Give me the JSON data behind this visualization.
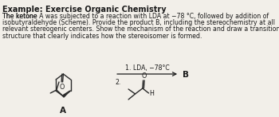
{
  "title": "Example: Exercise Organic Chemistry",
  "body_line1": "The ketone A was subjected to a reaction with LDA at −78 °C, followed by addition of",
  "body_line2": "isobutyraldehyde (Scheme). Provide the product B, including the stereochemistry at all",
  "body_line3": "relevant stereogenic centers. Show the mechanism of the reaction and draw a transition",
  "body_line4": "structure that clearly indicates how the stereoisomer is formed.",
  "bold_words_line1": [
    "A",
    "LDA"
  ],
  "label_A": "A",
  "label_B": "B",
  "reaction_step1": "1. LDA, −78°C",
  "reaction_step2": "2.",
  "bg_color": "#f2efe9",
  "text_color": "#1a1a1a",
  "fig_width": 3.5,
  "fig_height": 1.47,
  "dpi": 100,
  "title_fontsize": 7.0,
  "body_fontsize": 5.6,
  "chem_fontsize": 5.8
}
